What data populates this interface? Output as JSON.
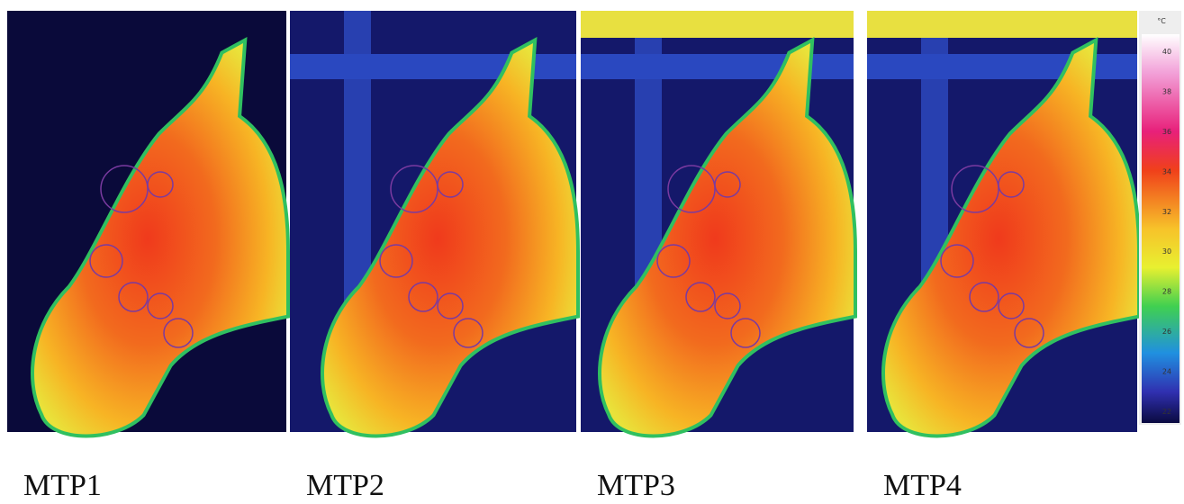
{
  "panels": [
    {
      "caption": "MTP1"
    },
    {
      "caption": "MTP2"
    },
    {
      "caption": "MTP3"
    },
    {
      "caption": "MTP4"
    }
  ],
  "scale": {
    "unit": "°C",
    "ticks": [
      "40",
      "38",
      "36",
      "34",
      "32",
      "30",
      "28",
      "26",
      "24",
      "22"
    ]
  }
}
